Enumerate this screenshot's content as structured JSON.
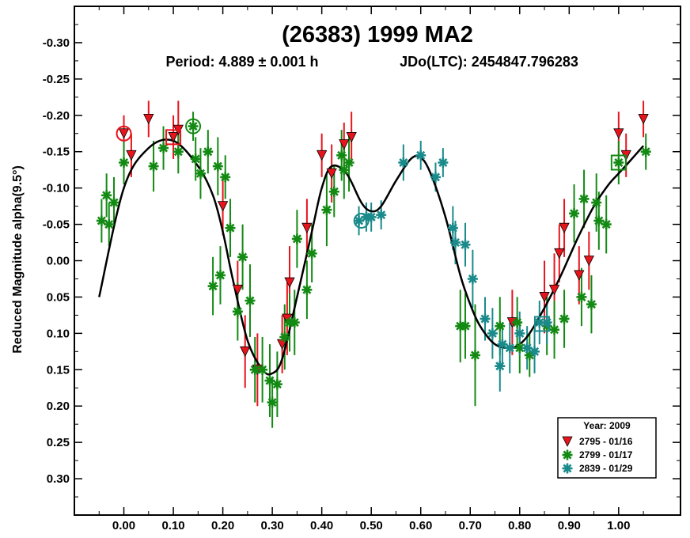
{
  "chart_data": {
    "type": "scatter",
    "title": "(26383) 1999 MA2",
    "subtitle_period": "Period: 4.889 ± 0.001 h",
    "subtitle_epoch": "JDo(LTC): 2454847.796283",
    "xlabel": "",
    "ylabel": "Reduced Magnitude alpha(9.5°)",
    "xlim": [
      -0.1,
      1.125
    ],
    "ylim": [
      0.35,
      -0.35
    ],
    "y_inverted": true,
    "grid": false,
    "x_ticks": [
      0.0,
      0.1,
      0.2,
      0.3,
      0.4,
      0.5,
      0.6,
      0.7,
      0.8,
      0.9,
      1.0
    ],
    "x_tick_labels": [
      "0.00",
      "0.10",
      "0.20",
      "0.30",
      "0.40",
      "0.50",
      "0.60",
      "0.70",
      "0.80",
      "0.90",
      "1.00"
    ],
    "y_ticks": [
      -0.3,
      -0.25,
      -0.2,
      -0.15,
      -0.1,
      -0.05,
      0.0,
      0.05,
      0.1,
      0.15,
      0.2,
      0.25,
      0.3
    ],
    "y_tick_labels": [
      "-0.30",
      "-0.25",
      "-0.20",
      "-0.15",
      "-0.10",
      "-0.05",
      "0.00",
      "0.05",
      "0.10",
      "0.15",
      "0.20",
      "0.25",
      "0.30"
    ],
    "legend": {
      "title": "Year: 2009",
      "position": "bottom-right",
      "entries": [
        {
          "label": "2795 - 01/16",
          "color": "#e8141c",
          "marker": "triangle-down"
        },
        {
          "label": "2799 - 01/17",
          "color": "#138a13",
          "marker": "asterisk"
        },
        {
          "label": "2839 - 01/29",
          "color": "#1a8a8a",
          "marker": "asterisk"
        }
      ]
    },
    "series": [
      {
        "name": "2795 - 01/16",
        "color": "#e8141c",
        "marker": "triangle-down",
        "points": [
          [
            0.0,
            -0.175,
            0.025
          ],
          [
            0.015,
            -0.145,
            0.03
          ],
          [
            0.05,
            -0.195,
            0.025
          ],
          [
            0.1,
            -0.17,
            0.03
          ],
          [
            0.11,
            -0.18,
            0.04
          ],
          [
            0.2,
            -0.075,
            0.04
          ],
          [
            0.23,
            0.04,
            0.04
          ],
          [
            0.245,
            0.125,
            0.05
          ],
          [
            0.27,
            0.15,
            0.05
          ],
          [
            0.32,
            0.115,
            0.04
          ],
          [
            0.33,
            0.08,
            0.05
          ],
          [
            0.335,
            0.03,
            0.05
          ],
          [
            0.37,
            -0.045,
            0.04
          ],
          [
            0.4,
            -0.145,
            0.03
          ],
          [
            0.42,
            -0.12,
            0.04
          ],
          [
            0.445,
            -0.16,
            0.03
          ],
          [
            0.46,
            -0.17,
            0.035
          ],
          [
            0.785,
            0.085,
            0.045
          ],
          [
            0.85,
            0.05,
            0.05
          ],
          [
            0.87,
            0.04,
            0.05
          ],
          [
            0.88,
            -0.01,
            0.04
          ],
          [
            0.89,
            -0.045,
            0.04
          ],
          [
            0.92,
            0.02,
            0.04
          ],
          [
            0.94,
            0.0,
            0.04
          ],
          [
            1.0,
            -0.175,
            0.03
          ],
          [
            1.015,
            -0.145,
            0.03
          ],
          [
            1.05,
            -0.195,
            0.025
          ]
        ]
      },
      {
        "name": "2799 - 01/17",
        "color": "#138a13",
        "marker": "asterisk",
        "points": [
          [
            -0.045,
            -0.055,
            0.03
          ],
          [
            -0.035,
            -0.09,
            0.03
          ],
          [
            -0.03,
            -0.05,
            0.03
          ],
          [
            -0.02,
            -0.08,
            0.035
          ],
          [
            0.0,
            -0.135,
            0.03
          ],
          [
            0.06,
            -0.13,
            0.035
          ],
          [
            0.08,
            -0.155,
            0.03
          ],
          [
            0.11,
            -0.15,
            0.03
          ],
          [
            0.14,
            -0.185,
            0.02
          ],
          [
            0.145,
            -0.14,
            0.03
          ],
          [
            0.155,
            -0.12,
            0.035
          ],
          [
            0.17,
            -0.15,
            0.03
          ],
          [
            0.19,
            -0.13,
            0.04
          ],
          [
            0.205,
            -0.115,
            0.03
          ],
          [
            0.18,
            0.035,
            0.04
          ],
          [
            0.195,
            0.02,
            0.04
          ],
          [
            0.215,
            -0.045,
            0.04
          ],
          [
            0.23,
            0.07,
            0.04
          ],
          [
            0.24,
            -0.005,
            0.045
          ],
          [
            0.255,
            0.055,
            0.05
          ],
          [
            0.265,
            0.15,
            0.045
          ],
          [
            0.28,
            0.15,
            0.045
          ],
          [
            0.295,
            0.165,
            0.05
          ],
          [
            0.3,
            0.195,
            0.035
          ],
          [
            0.31,
            0.17,
            0.045
          ],
          [
            0.325,
            0.105,
            0.045
          ],
          [
            0.335,
            0.085,
            0.04
          ],
          [
            0.345,
            0.085,
            0.045
          ],
          [
            0.35,
            -0.03,
            0.04
          ],
          [
            0.37,
            0.04,
            0.04
          ],
          [
            0.38,
            -0.01,
            0.04
          ],
          [
            0.41,
            -0.07,
            0.05
          ],
          [
            0.425,
            -0.095,
            0.035
          ],
          [
            0.44,
            -0.145,
            0.035
          ],
          [
            0.445,
            -0.125,
            0.04
          ],
          [
            0.455,
            -0.135,
            0.04
          ],
          [
            0.68,
            0.09,
            0.05
          ],
          [
            0.69,
            0.09,
            0.045
          ],
          [
            0.71,
            0.13,
            0.07
          ],
          [
            0.76,
            0.09,
            0.04
          ],
          [
            0.795,
            0.085,
            0.035
          ],
          [
            0.8,
            0.12,
            0.035
          ],
          [
            0.82,
            0.13,
            0.03
          ],
          [
            0.855,
            0.09,
            0.04
          ],
          [
            0.87,
            0.095,
            0.04
          ],
          [
            0.89,
            0.08,
            0.04
          ],
          [
            0.91,
            -0.065,
            0.04
          ],
          [
            0.925,
            0.05,
            0.04
          ],
          [
            0.945,
            0.06,
            0.04
          ],
          [
            0.93,
            -0.085,
            0.04
          ],
          [
            0.955,
            -0.08,
            0.04
          ],
          [
            0.96,
            -0.055,
            0.04
          ],
          [
            0.975,
            -0.05,
            0.04
          ],
          [
            1.0,
            -0.135,
            0.03
          ],
          [
            1.055,
            -0.15,
            0.025
          ]
        ]
      },
      {
        "name": "2839 - 01/29",
        "color": "#1a8a8a",
        "marker": "asterisk",
        "points": [
          [
            0.475,
            -0.055,
            0.02
          ],
          [
            0.49,
            -0.06,
            0.02
          ],
          [
            0.5,
            -0.06,
            0.02
          ],
          [
            0.52,
            -0.063,
            0.02
          ],
          [
            0.565,
            -0.135,
            0.025
          ],
          [
            0.6,
            -0.145,
            0.02
          ],
          [
            0.63,
            -0.115,
            0.02
          ],
          [
            0.645,
            -0.135,
            0.02
          ],
          [
            0.665,
            -0.045,
            0.03
          ],
          [
            0.67,
            -0.025,
            0.03
          ],
          [
            0.69,
            -0.022,
            0.03
          ],
          [
            0.705,
            0.025,
            0.04
          ],
          [
            0.73,
            0.08,
            0.03
          ],
          [
            0.745,
            0.1,
            0.035
          ],
          [
            0.76,
            0.145,
            0.035
          ],
          [
            0.765,
            0.115,
            0.03
          ],
          [
            0.78,
            0.12,
            0.035
          ],
          [
            0.8,
            0.1,
            0.03
          ],
          [
            0.815,
            0.12,
            0.03
          ],
          [
            0.83,
            0.125,
            0.03
          ],
          [
            0.84,
            0.085,
            0.03
          ],
          [
            0.855,
            0.085,
            0.03
          ]
        ]
      }
    ],
    "fit_curve": {
      "color": "#000000",
      "x": [
        -0.05,
        0.0,
        0.05,
        0.1,
        0.15,
        0.18,
        0.2,
        0.22,
        0.25,
        0.28,
        0.3,
        0.32,
        0.35,
        0.38,
        0.4,
        0.42,
        0.45,
        0.48,
        0.5,
        0.52,
        0.55,
        0.58,
        0.6,
        0.62,
        0.65,
        0.68,
        0.7,
        0.72,
        0.75,
        0.78,
        0.8,
        0.82,
        0.85,
        0.88,
        0.9,
        0.92,
        0.95,
        0.98,
        1.0,
        1.02,
        1.05
      ],
      "y": [
        0.05,
        -0.1,
        -0.155,
        -0.165,
        -0.13,
        -0.09,
        -0.04,
        0.025,
        0.11,
        0.15,
        0.155,
        0.135,
        0.05,
        -0.04,
        -0.1,
        -0.13,
        -0.12,
        -0.08,
        -0.068,
        -0.075,
        -0.11,
        -0.14,
        -0.142,
        -0.12,
        -0.06,
        0.02,
        0.06,
        0.09,
        0.115,
        0.12,
        0.115,
        0.1,
        0.065,
        0.025,
        -0.005,
        -0.035,
        -0.075,
        -0.105,
        -0.12,
        -0.135,
        -0.158
      ]
    },
    "highlight_markers": [
      {
        "series": "2795 - 01/16",
        "x": 0.0,
        "y": -0.175,
        "shape": "circle"
      },
      {
        "series": "2795 - 01/16",
        "x": 0.1,
        "y": -0.17,
        "shape": "square"
      },
      {
        "series": "2799 - 01/17",
        "x": 0.14,
        "y": -0.185,
        "shape": "circle"
      },
      {
        "series": "2799 - 01/17",
        "x": 1.0,
        "y": -0.135,
        "shape": "square"
      },
      {
        "series": "2839 - 01/29",
        "x": 0.48,
        "y": -0.055,
        "shape": "circle"
      },
      {
        "series": "2839 - 01/29",
        "x": 0.845,
        "y": 0.087,
        "shape": "square"
      }
    ]
  }
}
